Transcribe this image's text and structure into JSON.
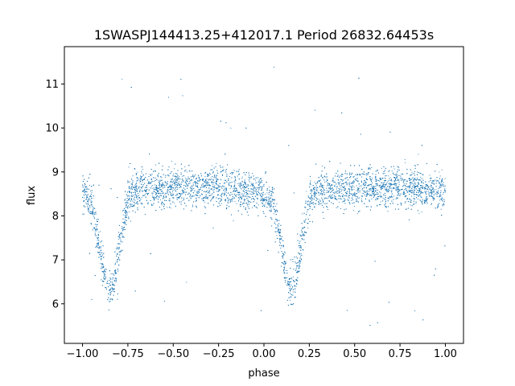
{
  "chart_data": {
    "type": "scatter",
    "title": "1SWASPJ144413.25+412017.1 Period 26832.64453s",
    "xlabel": "phase",
    "ylabel": "flux",
    "xlim": [
      -1.1,
      1.1
    ],
    "ylim": [
      5.1,
      11.85
    ],
    "xticks": [
      -1.0,
      -0.75,
      -0.5,
      -0.25,
      0.0,
      0.25,
      0.5,
      0.75,
      1.0
    ],
    "xtick_labels": [
      "−1.00",
      "−0.75",
      "−0.50",
      "−0.25",
      "0.00",
      "0.25",
      "0.50",
      "0.75",
      "1.00"
    ],
    "yticks": [
      6,
      7,
      8,
      9,
      10,
      11
    ],
    "ytick_labels": [
      "6",
      "7",
      "8",
      "9",
      "10",
      "11"
    ],
    "grid": false,
    "point_color": "#1f77b4",
    "baseline_flux": 8.6,
    "eclipse_minimum_flux": 6.3,
    "eclipse_centers_phase": [
      -0.85,
      0.15
    ],
    "phase_range": [
      -1.0,
      1.0
    ],
    "profile": {
      "x": [
        -1.0,
        -0.95,
        -0.9,
        -0.87,
        -0.85,
        -0.83,
        -0.8,
        -0.75,
        -0.7,
        -0.5,
        -0.25,
        0.0,
        0.05,
        0.1,
        0.13,
        0.15,
        0.17,
        0.2,
        0.25,
        0.3,
        0.5,
        0.75,
        1.0
      ],
      "y": [
        8.55,
        8.3,
        7.2,
        6.4,
        6.3,
        6.4,
        7.2,
        8.4,
        8.6,
        8.65,
        8.65,
        8.5,
        8.3,
        7.2,
        6.4,
        6.3,
        6.4,
        7.2,
        8.4,
        8.6,
        8.65,
        8.65,
        8.55
      ]
    }
  }
}
